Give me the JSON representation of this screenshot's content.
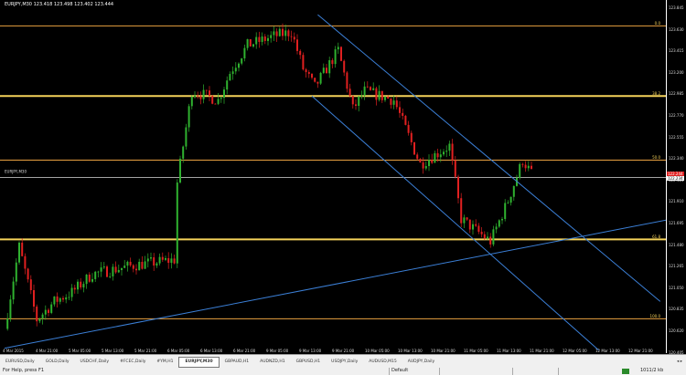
{
  "window": {
    "title": "EURJPY,M30  123.418 123.498 123.402 123.444"
  },
  "colors": {
    "bull": "#2fb12f",
    "bear": "#e02020",
    "fib_major": "#f5d35a",
    "fib_minor": "#e8a040",
    "trend": "#3b7fd6",
    "background": "#000000"
  },
  "price_axis": {
    "labels": [
      "123.845",
      "123.630",
      "123.415",
      "123.200",
      "122.985",
      "122.770",
      "122.555",
      "122.340",
      "122.125",
      "121.910",
      "121.695",
      "121.480",
      "121.265",
      "121.050",
      "120.835",
      "120.620",
      "120.405"
    ],
    "current_price": "122.244",
    "bid_label": "122.234"
  },
  "fib_levels": [
    {
      "label": "0.0",
      "price": 123.69,
      "major": false
    },
    {
      "label": "38.2",
      "price": 123.0,
      "major": true
    },
    {
      "label": "50.0",
      "price": 122.37,
      "major": false
    },
    {
      "label": "61.8",
      "price": 121.59,
      "major": true
    },
    {
      "label": "100.0",
      "price": 120.81,
      "major": false
    }
  ],
  "bid_line": {
    "label": "EURJPY,M30",
    "price": 122.2
  },
  "chart_data": {
    "type": "candlestick",
    "bars": 180,
    "waypoints": [
      [
        0,
        120.71
      ],
      [
        5,
        121.52
      ],
      [
        11,
        120.8
      ],
      [
        17,
        120.98
      ],
      [
        23,
        121.07
      ],
      [
        30,
        121.25
      ],
      [
        45,
        121.34
      ],
      [
        58,
        121.39
      ],
      [
        59,
        122.15
      ],
      [
        64,
        123.05
      ],
      [
        73,
        122.96
      ],
      [
        77,
        123.23
      ],
      [
        83,
        123.5
      ],
      [
        92,
        123.59
      ],
      [
        98,
        123.63
      ],
      [
        102,
        123.27
      ],
      [
        106,
        123.09
      ],
      [
        114,
        123.45
      ],
      [
        119,
        122.87
      ],
      [
        123,
        123.05
      ],
      [
        133,
        122.96
      ],
      [
        142,
        122.33
      ],
      [
        152,
        122.51
      ],
      [
        156,
        121.79
      ],
      [
        166,
        121.57
      ],
      [
        172,
        121.97
      ],
      [
        177,
        122.37
      ],
      [
        180,
        122.24
      ]
    ],
    "ylim": [
      120.4,
      123.9
    ]
  },
  "trend_lines": [
    {
      "from": [
        107,
        123.8
      ],
      "to": [
        224,
        120.98
      ]
    },
    {
      "from": [
        105,
        123.0
      ],
      "to": [
        203,
        120.5
      ]
    },
    {
      "from": [
        0,
        120.52
      ],
      "to": [
        226,
        121.78
      ]
    }
  ],
  "time_axis": [
    "4 Mar 2015",
    "4 Mar 21:00",
    "5 Mar 05:00",
    "5 Mar 13:00",
    "5 Mar 21:00",
    "6 Mar 05:00",
    "6 Mar 13:00",
    "6 Mar 21:00",
    "9 Mar 05:00",
    "9 Mar 13:00",
    "9 Mar 21:00",
    "10 Mar 05:00",
    "10 Mar 13:00",
    "10 Mar 21:00",
    "11 Mar 05:00",
    "11 Mar 13:00",
    "11 Mar 21:00",
    "12 Mar 05:00",
    "12 Mar 13:00",
    "12 Mar 21:00"
  ],
  "tabs": [
    "EURUSD,Daily",
    "GOLD,Daily",
    "USDCHF,Daily",
    "#FCEC,Daily",
    "#YM,H1",
    "EURJPY,M30",
    "GBPAUD,H1",
    "AUDNZD,H1",
    "GBPUSD,H1",
    "USDJPY,Daily",
    "AUDUSD,M15",
    "AUDJPY,Daily"
  ],
  "active_tab": 5,
  "tab_scroll": "◂ ▸",
  "status": {
    "help": "For Help, press F1",
    "profile": "Default",
    "traffic": "1011/2 kb"
  }
}
